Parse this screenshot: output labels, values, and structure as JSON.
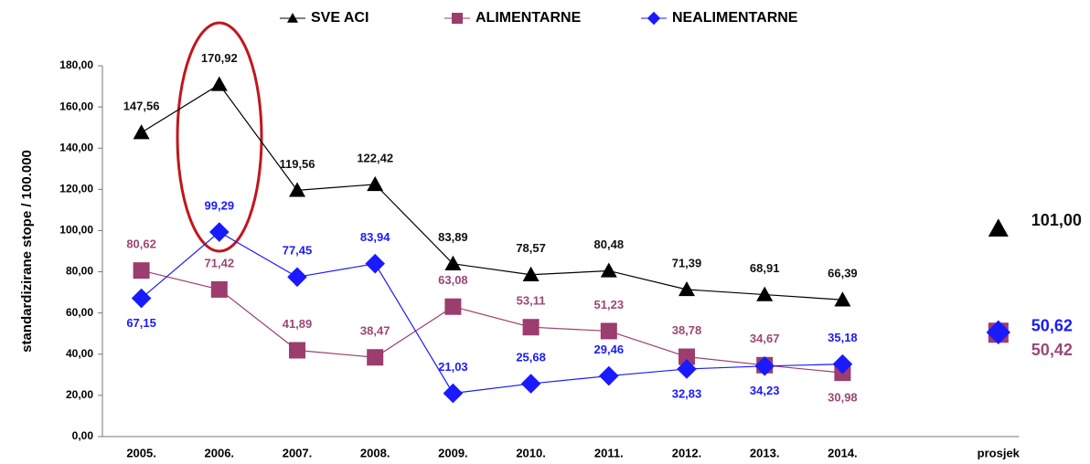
{
  "chart_data": {
    "type": "line",
    "y_label": "standardizirane stope / 100.000",
    "categories": [
      "2005.",
      "2006.",
      "2007.",
      "2008.",
      "2009.",
      "2010.",
      "2011.",
      "2012.",
      "2013.",
      "2014.",
      null,
      "prosjek"
    ],
    "series": [
      {
        "name": "SVE ACI",
        "color": "#000000",
        "label_color": "#111111",
        "values": [
          147.56,
          170.92,
          119.56,
          122.42,
          83.89,
          78.57,
          80.48,
          71.39,
          68.91,
          66.39,
          null,
          101.0
        ],
        "value_labels": [
          "147,56",
          "170,92",
          "119,56",
          "122,42",
          "83,89",
          "78,57",
          "80,48",
          "71,39",
          "68,91",
          "66,39",
          null,
          "101,00"
        ]
      },
      {
        "name": "ALIMENTARNE",
        "color": "#9b3d6e",
        "label_color": "#9b4775",
        "values": [
          80.62,
          71.42,
          41.89,
          38.47,
          63.08,
          53.11,
          51.23,
          38.78,
          34.67,
          30.98,
          null,
          50.42
        ],
        "value_labels": [
          "80,62",
          "71,42",
          "41,89",
          "38,47",
          "63,08",
          "53,11",
          "51,23",
          "38,78",
          "34,67",
          "30,98",
          null,
          "50,42"
        ]
      },
      {
        "name": "NEALIMENTARNE",
        "color": "#1a1aff",
        "label_color": "#1a1aff",
        "values": [
          67.15,
          99.29,
          77.45,
          83.94,
          21.03,
          25.68,
          29.46,
          32.83,
          34.23,
          35.18,
          null,
          50.62
        ],
        "value_labels": [
          "67,15",
          "99,29",
          "77,45",
          "83,94",
          "21,03",
          "25,68",
          "29,46",
          "32,83",
          "34,23",
          "35,18",
          null,
          "50,62"
        ]
      }
    ],
    "ylim": [
      0,
      180
    ],
    "yticks": [
      {
        "value": 0,
        "label": "0,00"
      },
      {
        "value": 20,
        "label": "20,00"
      },
      {
        "value": 40,
        "label": "40,00"
      },
      {
        "value": 60,
        "label": "60,00"
      },
      {
        "value": 80,
        "label": "80,00"
      },
      {
        "value": 100,
        "label": "100,00"
      },
      {
        "value": 120,
        "label": "120,00"
      },
      {
        "value": 140,
        "label": "140,00"
      },
      {
        "value": 160,
        "label": "160,00"
      },
      {
        "value": 180,
        "label": "180,00"
      }
    ],
    "legend": "top"
  }
}
